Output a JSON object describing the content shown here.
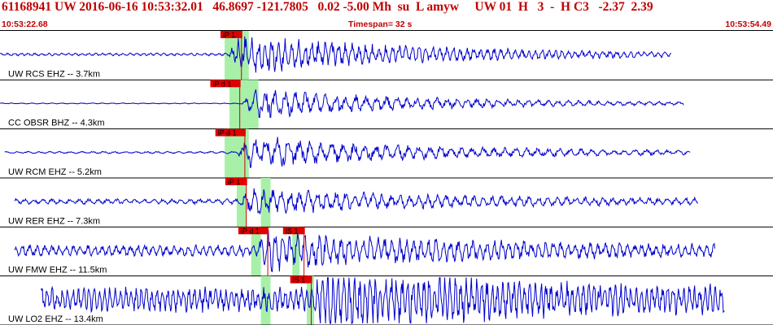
{
  "header": {
    "event_line": "61168941 UW 2016-06-16 10:53:32.01   46.8697 -121.7805   0.02 -5.00 Mh  su  L amyw     UW 01  H   3  -  H C3   -2.37  2.39",
    "start_time": "10:53:22.68",
    "timespan": "Timespan=  32 s",
    "end_time": "10:53:54.49"
  },
  "colors": {
    "trace": "#0000cc",
    "header_text": "#c00000",
    "pick_box": "#e00000",
    "pick_line": "#cc0000",
    "window_band": "#a8f0a8",
    "divider": "#000000"
  },
  "traces": [
    {
      "label": "UW RCS EHZ -- 3.7km",
      "picks": [
        {
          "label": "iP 1",
          "t": 9.16
        }
      ],
      "windows": [
        [
          9.3,
          10.3
        ]
      ],
      "signal": {
        "noise": 0.06,
        "onset": 9.4,
        "peak": 0.9,
        "end": 27.8,
        "period": 0.28,
        "start": 0.0
      }
    },
    {
      "label": "CC OBSR BHZ -- 4.3km",
      "picks": [
        {
          "label": "iP d 1",
          "t": 8.74
        }
      ],
      "windows": [
        [
          9.5,
          10.3
        ],
        [
          10.0,
          10.7
        ]
      ],
      "signal": {
        "noise": 0.02,
        "onset": 10.0,
        "peak": 0.7,
        "end": 28.3,
        "period": 0.42,
        "start": 0.0
      }
    },
    {
      "label": "UW RCM EHZ -- 5.2km",
      "picks": [
        {
          "label": "iP d 1",
          "t": 8.95
        }
      ],
      "windows": [
        [
          9.3,
          10.3
        ]
      ],
      "signal": {
        "noise": 0.05,
        "onset": 9.8,
        "peak": 0.75,
        "end": 28.6,
        "period": 0.45,
        "start": 0.2
      }
    },
    {
      "label": "UW RER EHZ -- 7.3km",
      "picks": [
        {
          "label": "iP 1",
          "t": 9.36
        }
      ],
      "windows": [
        [
          9.8,
          10.2
        ],
        [
          10.8,
          11.2
        ]
      ],
      "signal": {
        "noise": 0.12,
        "onset": 9.8,
        "peak": 0.55,
        "end": 28.9,
        "period": 0.38,
        "start": 0.6
      }
    },
    {
      "label": "UW FMW EHZ -- 11.5km",
      "picks": [
        {
          "label": "iP d 1",
          "t": 9.9
        },
        {
          "label": "iS 1",
          "t": 11.75
        }
      ],
      "windows": [
        [
          10.4,
          10.8
        ],
        [
          12.1,
          12.4
        ]
      ],
      "signal": {
        "noise": 0.25,
        "onset": 10.6,
        "peak": 0.75,
        "end": 29.6,
        "period": 0.3,
        "start": 0.6
      }
    },
    {
      "label": "UW LO2 EHZ -- 13.4km",
      "picks": [
        {
          "label": "iS 1",
          "t": 12.05
        }
      ],
      "windows": [
        [
          10.8,
          11.2
        ],
        [
          12.7,
          13.0
        ]
      ],
      "signal": {
        "noise": 0.55,
        "onset": 12.9,
        "peak": 1.0,
        "end": 30.0,
        "period": 0.22,
        "start": 1.7
      }
    }
  ]
}
